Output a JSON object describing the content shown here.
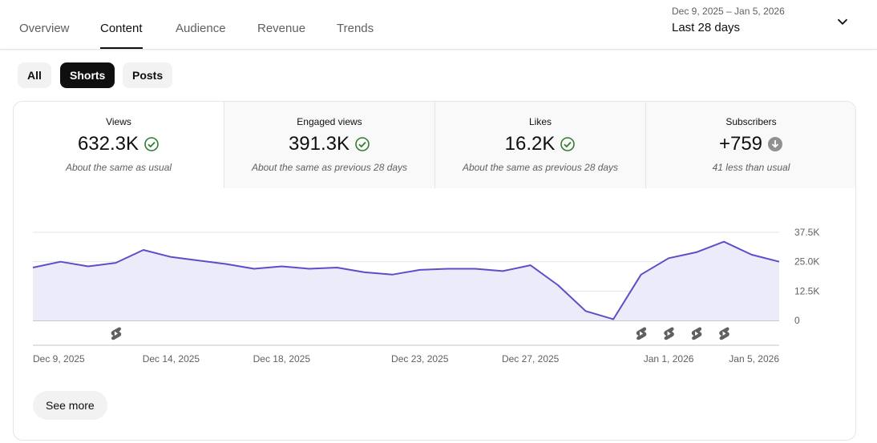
{
  "nav": {
    "tabs": [
      {
        "label": "Overview",
        "active": false
      },
      {
        "label": "Content",
        "active": true
      },
      {
        "label": "Audience",
        "active": false
      },
      {
        "label": "Revenue",
        "active": false
      },
      {
        "label": "Trends",
        "active": false
      }
    ],
    "date_range_sub": "Dec 9, 2025 – Jan 5, 2026",
    "date_range_main": "Last 28 days",
    "dropdown_icon": "chevron-down-icon"
  },
  "filters": {
    "chips": [
      {
        "label": "All",
        "active": false
      },
      {
        "label": "Shorts",
        "active": true
      },
      {
        "label": "Posts",
        "active": false
      }
    ]
  },
  "metrics": [
    {
      "label": "Views",
      "value": "632.3K",
      "note": "About the same as usual",
      "status_icon": "check-circle-icon",
      "status_color": "#2e7d32"
    },
    {
      "label": "Engaged views",
      "value": "391.3K",
      "note": "About the same as previous 28 days",
      "status_icon": "check-circle-icon",
      "status_color": "#2e7d32"
    },
    {
      "label": "Likes",
      "value": "16.2K",
      "note": "About the same as previous 28 days",
      "status_icon": "check-circle-icon",
      "status_color": "#2e7d32"
    },
    {
      "label": "Subscribers",
      "value": "+759",
      "note": "41 less than usual",
      "status_icon": "arrow-down-circle-icon",
      "status_color": "#909090"
    }
  ],
  "chart_data": {
    "type": "area",
    "series": [
      {
        "values": [
          22500,
          25000,
          23000,
          24500,
          30000,
          27000,
          25500,
          24000,
          22000,
          23000,
          22000,
          22500,
          20500,
          19500,
          21500,
          22000,
          22000,
          21000,
          23500,
          15000,
          4000,
          500,
          19500,
          26500,
          29000,
          33500,
          28000,
          25000
        ]
      }
    ],
    "x_tick_labels": [
      "Dec 9, 2025",
      "Dec 14, 2025",
      "Dec 18, 2025",
      "Dec 23, 2025",
      "Dec 27, 2025",
      "Jan 1, 2026",
      "Jan 5, 2026"
    ],
    "x_tick_index": [
      0,
      5,
      9,
      14,
      18,
      23,
      27
    ],
    "y_ticks": [
      0,
      12500,
      25000,
      37500
    ],
    "y_tick_labels": [
      "0",
      "12.5K",
      "25.0K",
      "37.5K"
    ],
    "ylim": [
      0,
      37500
    ],
    "short_markers_index": [
      3,
      22,
      23,
      24,
      25
    ],
    "marker_icon": "shorts-icon",
    "line_color": "#5c4ec9",
    "fill_color": "#ecebfa",
    "grid": true
  },
  "see_more_label": "See more"
}
